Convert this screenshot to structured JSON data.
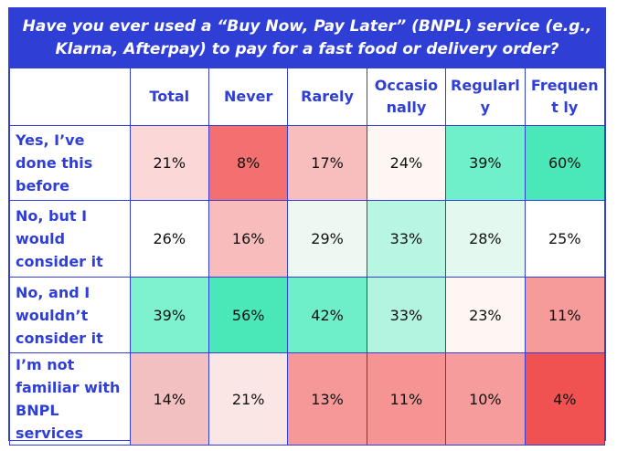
{
  "chart_data": {
    "type": "table",
    "title": "Have you ever used a “Buy Now, Pay Later” (BNPL) service (e.g., Klarna, Afterpay) to pay for a fast food or delivery order?",
    "columns": [
      "Total",
      "Never",
      "Rarely",
      "Occasionally",
      "Regularly",
      "Frequently"
    ],
    "column_labels_display": [
      "Total",
      "Never",
      "Rarely",
      "Occasio nally",
      "Regularl y",
      "Frequent ly"
    ],
    "rows": [
      {
        "label": "Yes, I’ve done this before",
        "values": [
          "21%",
          "8%",
          "17%",
          "24%",
          "39%",
          "60%"
        ],
        "colors": [
          "#fbd7d7",
          "#f46f6f",
          "#f8bdbd",
          "#fdf6f2",
          "#6ff0cb",
          "#4ae8b8"
        ]
      },
      {
        "label": "No, but I would consider it",
        "values": [
          "26%",
          "16%",
          "29%",
          "33%",
          "28%",
          "25%"
        ],
        "colors": [
          "#ffffff",
          "#f8bcbc",
          "#eef8f2",
          "#b8f5e3",
          "#e3f8ee",
          "#ffffff"
        ]
      },
      {
        "label": "No, and I wouldn’t consider it",
        "values": [
          "39%",
          "56%",
          "42%",
          "33%",
          "23%",
          "11%"
        ],
        "colors": [
          "#7ef1cf",
          "#4ae8b8",
          "#6fefc9",
          "#b3f4e0",
          "#fdf6f3",
          "#f69a9a"
        ]
      },
      {
        "label": "I’m not familiar with BNPL services",
        "values": [
          "14%",
          "21%",
          "13%",
          "11%",
          "10%",
          "4%"
        ],
        "colors": [
          "#f2c0c0",
          "#fbe6e6",
          "#f69898",
          "#f69494",
          "#f69c9c",
          "#f05252"
        ]
      }
    ]
  }
}
